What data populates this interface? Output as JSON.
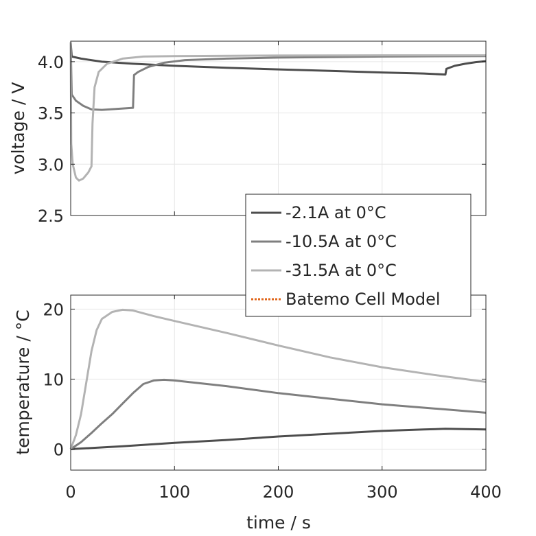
{
  "chart_data": [
    {
      "type": "line",
      "ylabel": "voltage / V",
      "xlim": [
        0,
        400
      ],
      "ylim": [
        2.5,
        4.2
      ],
      "xticks": [
        0,
        100,
        200,
        300,
        400
      ],
      "yticks": [
        2.5,
        3.0,
        3.5,
        4.0
      ],
      "ytick_labels": [
        "2.5",
        "3.0",
        "3.5",
        "4.0"
      ],
      "grid": true,
      "series": [
        {
          "name": "-2.1A at 0°C",
          "color": "#4d4d4d",
          "points": [
            [
              0,
              4.19
            ],
            [
              1,
              4.05
            ],
            [
              10,
              4.03
            ],
            [
              30,
              4.0
            ],
            [
              60,
              3.98
            ],
            [
              100,
              3.96
            ],
            [
              150,
              3.94
            ],
            [
              200,
              3.925
            ],
            [
              250,
              3.91
            ],
            [
              300,
              3.895
            ],
            [
              340,
              3.885
            ],
            [
              361,
              3.875
            ],
            [
              362,
              3.93
            ],
            [
              370,
              3.96
            ],
            [
              380,
              3.98
            ],
            [
              390,
              3.995
            ],
            [
              400,
              4.005
            ]
          ]
        },
        {
          "name": "-10.5A at 0°C",
          "color": "#7f7f7f",
          "points": [
            [
              0,
              4.19
            ],
            [
              1,
              3.68
            ],
            [
              5,
              3.62
            ],
            [
              12,
              3.57
            ],
            [
              20,
              3.535
            ],
            [
              30,
              3.53
            ],
            [
              45,
              3.54
            ],
            [
              60,
              3.55
            ],
            [
              61,
              3.87
            ],
            [
              65,
              3.9
            ],
            [
              75,
              3.95
            ],
            [
              90,
              3.99
            ],
            [
              110,
              4.015
            ],
            [
              150,
              4.03
            ],
            [
              200,
              4.04
            ],
            [
              300,
              4.05
            ],
            [
              400,
              4.055
            ]
          ]
        },
        {
          "name": "-31.5A at 0°C",
          "color": "#b3b3b3",
          "points": [
            [
              0,
              4.19
            ],
            [
              0.5,
              3.2
            ],
            [
              2,
              3.0
            ],
            [
              5,
              2.87
            ],
            [
              8,
              2.84
            ],
            [
              12,
              2.86
            ],
            [
              17,
              2.92
            ],
            [
              20,
              2.98
            ],
            [
              21,
              3.4
            ],
            [
              23,
              3.75
            ],
            [
              27,
              3.9
            ],
            [
              35,
              3.98
            ],
            [
              50,
              4.03
            ],
            [
              70,
              4.05
            ],
            [
              100,
              4.055
            ],
            [
              200,
              4.06
            ],
            [
              300,
              4.062
            ],
            [
              400,
              4.062
            ]
          ]
        }
      ]
    },
    {
      "type": "line",
      "xlabel": "time / s",
      "ylabel": "temperature / °C",
      "xlim": [
        0,
        400
      ],
      "ylim": [
        -3,
        22
      ],
      "xticks": [
        0,
        100,
        200,
        300,
        400
      ],
      "xtick_labels": [
        "0",
        "100",
        "200",
        "300",
        "400"
      ],
      "yticks": [
        0,
        10,
        20
      ],
      "ytick_labels": [
        "0",
        "10",
        "20"
      ],
      "grid": true,
      "series": [
        {
          "name": "-2.1A at 0°C",
          "color": "#4d4d4d",
          "points": [
            [
              0,
              0
            ],
            [
              50,
              0.4
            ],
            [
              100,
              0.9
            ],
            [
              150,
              1.3
            ],
            [
              200,
              1.8
            ],
            [
              250,
              2.2
            ],
            [
              300,
              2.6
            ],
            [
              340,
              2.8
            ],
            [
              361,
              2.9
            ],
            [
              380,
              2.85
            ],
            [
              400,
              2.8
            ]
          ]
        },
        {
          "name": "-10.5A at 0°C",
          "color": "#7f7f7f",
          "points": [
            [
              0,
              0
            ],
            [
              10,
              1.0
            ],
            [
              20,
              2.3
            ],
            [
              30,
              3.7
            ],
            [
              40,
              5.0
            ],
            [
              50,
              6.5
            ],
            [
              60,
              8.0
            ],
            [
              70,
              9.3
            ],
            [
              80,
              9.8
            ],
            [
              90,
              9.9
            ],
            [
              100,
              9.8
            ],
            [
              150,
              9.0
            ],
            [
              200,
              8.0
            ],
            [
              250,
              7.2
            ],
            [
              300,
              6.4
            ],
            [
              350,
              5.8
            ],
            [
              400,
              5.2
            ]
          ]
        },
        {
          "name": "-31.5A at 0°C",
          "color": "#b3b3b3",
          "points": [
            [
              0,
              0
            ],
            [
              5,
              2
            ],
            [
              10,
              5
            ],
            [
              15,
              9.5
            ],
            [
              20,
              14
            ],
            [
              25,
              17
            ],
            [
              30,
              18.6
            ],
            [
              40,
              19.6
            ],
            [
              50,
              19.9
            ],
            [
              60,
              19.8
            ],
            [
              80,
              19.0
            ],
            [
              100,
              18.3
            ],
            [
              150,
              16.6
            ],
            [
              200,
              14.8
            ],
            [
              250,
              13.1
            ],
            [
              300,
              11.7
            ],
            [
              350,
              10.6
            ],
            [
              400,
              9.6
            ]
          ]
        }
      ]
    }
  ],
  "legend": {
    "placement": "top-right of temperature plot, overlapping voltage plot",
    "items": [
      {
        "label": "-2.1A at 0°C",
        "color": "#4d4d4d",
        "style": "solid"
      },
      {
        "label": "-10.5A at 0°C",
        "color": "#7f7f7f",
        "style": "solid"
      },
      {
        "label": "-31.5A at 0°C",
        "color": "#b3b3b3",
        "style": "solid"
      },
      {
        "label": "Batemo Cell Model",
        "color": "#e0661a",
        "style": "dotted"
      }
    ]
  }
}
